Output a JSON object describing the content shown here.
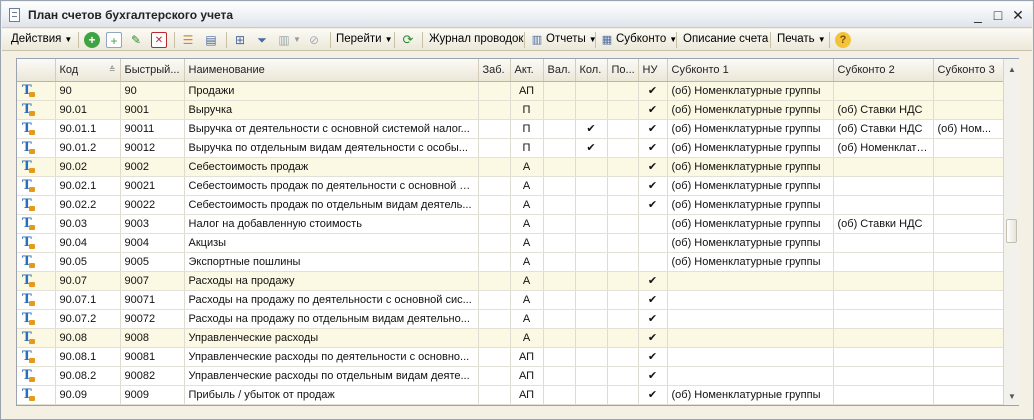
{
  "window": {
    "title": "План счетов бухгалтерского учета",
    "controls": {
      "minimize": "_",
      "maximize": "□",
      "close": "✕"
    }
  },
  "toolbar": {
    "actions_label": "Действия",
    "goto_label": "Перейти",
    "journal_label": "Журнал проводок",
    "reports_label": "Отчеты",
    "subconto_label": "Субконто",
    "description_label": "Описание счета",
    "print_label": "Печать",
    "help_label": "?"
  },
  "grid": {
    "columns": [
      {
        "key": "icon",
        "label": ""
      },
      {
        "key": "code",
        "label": "Код"
      },
      {
        "key": "quick",
        "label": "Быстрый..."
      },
      {
        "key": "name",
        "label": "Наименование"
      },
      {
        "key": "zab",
        "label": "Заб."
      },
      {
        "key": "akt",
        "label": "Акт."
      },
      {
        "key": "val",
        "label": "Вал."
      },
      {
        "key": "kol",
        "label": "Кол."
      },
      {
        "key": "po",
        "label": "По..."
      },
      {
        "key": "nu",
        "label": "НУ"
      },
      {
        "key": "s1",
        "label": "Субконто 1"
      },
      {
        "key": "s2",
        "label": "Субконто 2"
      },
      {
        "key": "s3",
        "label": "Субконто 3"
      }
    ],
    "rows": [
      {
        "group": true,
        "code": "90",
        "quick": "90",
        "name": "Продажи",
        "zab": "",
        "akt": "АП",
        "val": "",
        "kol": "",
        "po": "",
        "nu": "✔",
        "s1": "(об) Номенклатурные группы",
        "s2": "",
        "s3": ""
      },
      {
        "group": true,
        "code": "90.01",
        "quick": "9001",
        "name": "Выручка",
        "zab": "",
        "akt": "П",
        "val": "",
        "kol": "",
        "po": "",
        "nu": "✔",
        "s1": "(об) Номенклатурные группы",
        "s2": "(об) Ставки НДС",
        "s3": ""
      },
      {
        "group": false,
        "code": "90.01.1",
        "quick": "90011",
        "name": "Выручка от деятельности с основной системой налог...",
        "zab": "",
        "akt": "П",
        "val": "",
        "kol": "✔",
        "po": "",
        "nu": "✔",
        "s1": "(об) Номенклатурные группы",
        "s2": "(об) Ставки НДС",
        "s3": "(об) Ном..."
      },
      {
        "group": false,
        "code": "90.01.2",
        "quick": "90012",
        "name": "Выручка по отдельным видам деятельности с особы...",
        "zab": "",
        "akt": "П",
        "val": "",
        "kol": "✔",
        "po": "",
        "nu": "✔",
        "s1": "(об) Номенклатурные группы",
        "s2": "(об) Номенклату...",
        "s3": ""
      },
      {
        "group": true,
        "code": "90.02",
        "quick": "9002",
        "name": "Себестоимость продаж",
        "zab": "",
        "akt": "А",
        "val": "",
        "kol": "",
        "po": "",
        "nu": "✔",
        "s1": "(об) Номенклатурные группы",
        "s2": "",
        "s3": ""
      },
      {
        "group": false,
        "code": "90.02.1",
        "quick": "90021",
        "name": "Себестоимость продаж по деятельности с основной с...",
        "zab": "",
        "akt": "А",
        "val": "",
        "kol": "",
        "po": "",
        "nu": "✔",
        "s1": "(об) Номенклатурные группы",
        "s2": "",
        "s3": ""
      },
      {
        "group": false,
        "code": "90.02.2",
        "quick": "90022",
        "name": "Себестоимость продаж по отдельным видам деятель...",
        "zab": "",
        "akt": "А",
        "val": "",
        "kol": "",
        "po": "",
        "nu": "✔",
        "s1": "(об) Номенклатурные группы",
        "s2": "",
        "s3": ""
      },
      {
        "group": false,
        "code": "90.03",
        "quick": "9003",
        "name": "Налог на добавленную стоимость",
        "zab": "",
        "akt": "А",
        "val": "",
        "kol": "",
        "po": "",
        "nu": "",
        "s1": "(об) Номенклатурные группы",
        "s2": "(об) Ставки НДС",
        "s3": ""
      },
      {
        "group": false,
        "code": "90.04",
        "quick": "9004",
        "name": "Акцизы",
        "zab": "",
        "akt": "А",
        "val": "",
        "kol": "",
        "po": "",
        "nu": "",
        "s1": "(об) Номенклатурные группы",
        "s2": "",
        "s3": ""
      },
      {
        "group": false,
        "code": "90.05",
        "quick": "9005",
        "name": "Экспортные пошлины",
        "zab": "",
        "akt": "А",
        "val": "",
        "kol": "",
        "po": "",
        "nu": "",
        "s1": "(об) Номенклатурные группы",
        "s2": "",
        "s3": ""
      },
      {
        "group": true,
        "code": "90.07",
        "quick": "9007",
        "name": "Расходы на продажу",
        "zab": "",
        "akt": "А",
        "val": "",
        "kol": "",
        "po": "",
        "nu": "✔",
        "s1": "",
        "s2": "",
        "s3": ""
      },
      {
        "group": false,
        "code": "90.07.1",
        "quick": "90071",
        "name": "Расходы на продажу по деятельности с основной сис...",
        "zab": "",
        "akt": "А",
        "val": "",
        "kol": "",
        "po": "",
        "nu": "✔",
        "s1": "",
        "s2": "",
        "s3": ""
      },
      {
        "group": false,
        "code": "90.07.2",
        "quick": "90072",
        "name": "Расходы на продажу по отдельным видам деятельно...",
        "zab": "",
        "akt": "А",
        "val": "",
        "kol": "",
        "po": "",
        "nu": "✔",
        "s1": "",
        "s2": "",
        "s3": ""
      },
      {
        "group": true,
        "code": "90.08",
        "quick": "9008",
        "name": "Управленческие расходы",
        "zab": "",
        "akt": "А",
        "val": "",
        "kol": "",
        "po": "",
        "nu": "✔",
        "s1": "",
        "s2": "",
        "s3": ""
      },
      {
        "group": false,
        "code": "90.08.1",
        "quick": "90081",
        "name": "Управленческие расходы по деятельности с основно...",
        "zab": "",
        "akt": "АП",
        "val": "",
        "kol": "",
        "po": "",
        "nu": "✔",
        "s1": "",
        "s2": "",
        "s3": ""
      },
      {
        "group": false,
        "code": "90.08.2",
        "quick": "90082",
        "name": "Управленческие расходы по отдельным видам деяте...",
        "zab": "",
        "akt": "АП",
        "val": "",
        "kol": "",
        "po": "",
        "nu": "✔",
        "s1": "",
        "s2": "",
        "s3": ""
      },
      {
        "group": false,
        "code": "90.09",
        "quick": "9009",
        "name": "Прибыль / убыток от продаж",
        "zab": "",
        "akt": "АП",
        "val": "",
        "kol": "",
        "po": "",
        "nu": "✔",
        "s1": "(об) Номенклатурные группы",
        "s2": "",
        "s3": ""
      }
    ]
  }
}
